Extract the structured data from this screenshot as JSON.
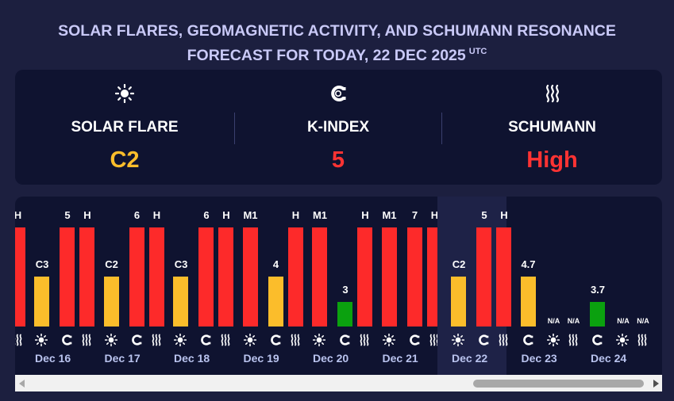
{
  "header": {
    "title_line1": "SOLAR FLARES, GEOMAGNETIC ACTIVITY, AND SCHUMANN RESONANCE",
    "title_line2": "FORECAST FOR TODAY, 22 DEC 2025",
    "title_sup": "UTC"
  },
  "summary": {
    "solar_flare": {
      "label": "SOLAR FLARE",
      "value": "C2",
      "color": "#fbbd2b",
      "icon": "sun-icon"
    },
    "k_index": {
      "label": "K-INDEX",
      "value": "5",
      "color": "#ff3333",
      "icon": "magnet-icon"
    },
    "schumann": {
      "label": "SCHUMANN",
      "value": "High",
      "color": "#ff3333",
      "icon": "waves-icon"
    }
  },
  "colors": {
    "yellow": "#fbbd2b",
    "red": "#fd2a2a",
    "green": "#0ba10f"
  },
  "chart": {
    "level_map": {
      "C": 0.5,
      "M": 1.0,
      "H": 1.0,
      "K3": 0.25,
      "K4": 0.5,
      "K5": 1.0
    },
    "partial_labels": [
      "H"
    ],
    "days": [
      {
        "date": "Dec 16",
        "bars": [
          {
            "label": "C3",
            "level": 0.5,
            "color": "yellow"
          },
          {
            "label": "5",
            "level": 1,
            "color": "red"
          },
          {
            "label": "H",
            "level": 1,
            "color": "red"
          }
        ],
        "icons": [
          "sun-icon",
          "magnet-icon",
          "waves-icon"
        ]
      },
      {
        "date": "Dec 17",
        "bars": [
          {
            "label": "C2",
            "level": 0.5,
            "color": "yellow"
          },
          {
            "label": "6",
            "level": 1,
            "color": "red"
          },
          {
            "label": "H",
            "level": 1,
            "color": "red"
          }
        ],
        "icons": [
          "sun-icon",
          "magnet-icon",
          "waves-icon"
        ]
      },
      {
        "date": "Dec 18",
        "bars": [
          {
            "label": "C3",
            "level": 0.5,
            "color": "yellow"
          },
          {
            "label": "6",
            "level": 1,
            "color": "red"
          },
          {
            "label": "H",
            "level": 1,
            "color": "red"
          }
        ],
        "icons": [
          "sun-icon",
          "magnet-icon",
          "waves-icon"
        ]
      },
      {
        "date": "Dec 19",
        "bars": [
          {
            "label": "M1",
            "level": 1,
            "color": "red"
          },
          {
            "label": "4",
            "level": 0.5,
            "color": "yellow"
          },
          {
            "label": "H",
            "level": 1,
            "color": "red"
          }
        ],
        "icons": [
          "sun-icon",
          "magnet-icon",
          "waves-icon"
        ]
      },
      {
        "date": "Dec 20",
        "bars": [
          {
            "label": "M1",
            "level": 1,
            "color": "red"
          },
          {
            "label": "3",
            "level": 0.25,
            "color": "green"
          },
          {
            "label": "H",
            "level": 1,
            "color": "red"
          }
        ],
        "icons": [
          "sun-icon",
          "magnet-icon",
          "waves-icon"
        ]
      },
      {
        "date": "Dec 21",
        "bars": [
          {
            "label": "M1",
            "level": 1,
            "color": "red"
          },
          {
            "label": "7",
            "level": 1,
            "color": "red"
          },
          {
            "label": "H",
            "level": 1,
            "color": "red"
          }
        ],
        "icons": [
          "sun-icon",
          "magnet-icon",
          "waves-icon"
        ]
      },
      {
        "date": "Dec 22",
        "highlight": true,
        "bars": [
          {
            "label": "C2",
            "level": 0.5,
            "color": "yellow"
          },
          {
            "label": "5",
            "level": 1,
            "color": "red"
          },
          {
            "label": "H",
            "level": 1,
            "color": "red"
          }
        ],
        "icons": [
          "sun-icon",
          "magnet-icon",
          "waves-icon"
        ]
      },
      {
        "date": "Dec 23",
        "bars": [
          {
            "label": "4.7",
            "level": 0.5,
            "color": "yellow"
          },
          {
            "label": "N/A",
            "level": 0,
            "color": "none"
          },
          {
            "label": "N/A",
            "level": 0,
            "color": "none"
          }
        ],
        "icons": [
          "magnet-icon",
          "sun-icon",
          "waves-icon"
        ]
      },
      {
        "date": "Dec 24",
        "bars": [
          {
            "label": "3.7",
            "level": 0.25,
            "color": "green"
          },
          {
            "label": "N/A",
            "level": 0,
            "color": "none"
          },
          {
            "label": "N/A",
            "level": 0,
            "color": "none"
          }
        ],
        "icons": [
          "magnet-icon",
          "sun-icon",
          "waves-icon"
        ]
      }
    ]
  },
  "scrollbar": {
    "left_icon": "arrow-left-icon",
    "right_icon": "arrow-right-icon"
  }
}
